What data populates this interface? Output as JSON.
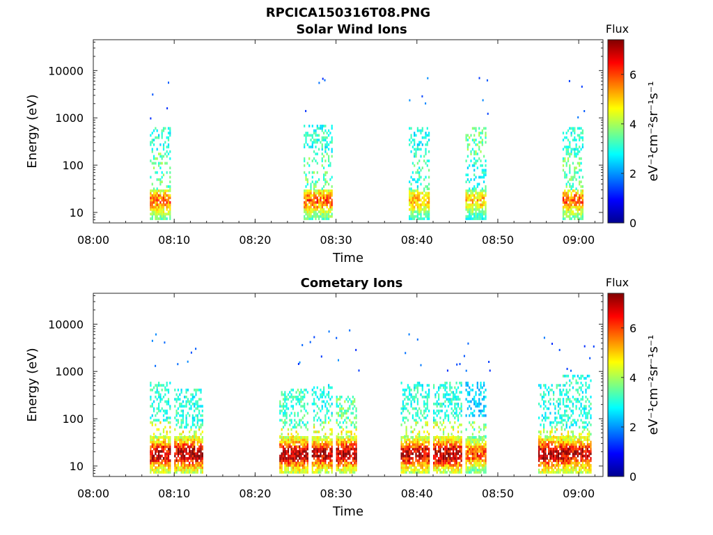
{
  "figure": {
    "filename": "RPCICA150316T08.PNG"
  },
  "chart_data": [
    {
      "type": "heatmap",
      "title": "Solar Wind Ions",
      "xlabel": "Time",
      "ylabel": "Energy (eV)",
      "x_ticks": [
        "08:00",
        "08:10",
        "08:20",
        "08:30",
        "08:40",
        "08:50",
        "09:00"
      ],
      "x_range_minutes_after_0800": [
        0,
        63
      ],
      "y_scale": "log",
      "y_ticks": [
        "10",
        "100",
        "1000",
        "10000"
      ],
      "y_range_eV": [
        6,
        45000
      ],
      "colorbar": {
        "label_title": "Flux",
        "unit": "eV⁻¹cm⁻²sr⁻¹s⁻¹",
        "range": [
          0,
          7.4
        ],
        "ticks": [
          "0",
          "2",
          "4",
          "6"
        ],
        "colormap": "jet"
      },
      "bursts": [
        {
          "t_start": "08:07",
          "t_end": "08:09",
          "low_band_eV": [
            7,
            30
          ],
          "low_peak": 5.8,
          "mid_band_eV": [
            180,
            600
          ],
          "mid_peak": 3.0
        },
        {
          "t_start": "08:26",
          "t_end": "08:29",
          "low_band_eV": [
            7,
            30
          ],
          "low_peak": 5.8,
          "mid_band_eV": [
            180,
            700
          ],
          "mid_peak": 3.0
        },
        {
          "t_start": "08:39",
          "t_end": "08:41",
          "low_band_eV": [
            7,
            30
          ],
          "low_peak": 5.2,
          "mid_band_eV": [
            200,
            600
          ],
          "mid_peak": 2.8
        },
        {
          "t_start": "08:46",
          "t_end": "08:48",
          "low_band_eV": [
            7,
            30
          ],
          "low_peak": 5.0,
          "mid_band_eV": [
            150,
            600
          ],
          "mid_peak": 3.5
        },
        {
          "t_start": "08:58",
          "t_end": "09:00",
          "low_band_eV": [
            7,
            30
          ],
          "low_peak": 5.8,
          "mid_band_eV": [
            180,
            600
          ],
          "mid_peak": 3.0
        }
      ]
    },
    {
      "type": "heatmap",
      "title": "Cometary Ions",
      "xlabel": "Time",
      "ylabel": "Energy (eV)",
      "x_ticks": [
        "08:00",
        "08:10",
        "08:20",
        "08:30",
        "08:40",
        "08:50",
        "09:00"
      ],
      "x_range_minutes_after_0800": [
        0,
        63
      ],
      "y_scale": "log",
      "y_ticks": [
        "10",
        "100",
        "1000",
        "10000"
      ],
      "y_range_eV": [
        6,
        45000
      ],
      "colorbar": {
        "label_title": "Flux",
        "unit": "eV⁻¹cm⁻²sr⁻¹s⁻¹",
        "range": [
          0,
          7.4
        ],
        "ticks": [
          "0",
          "2",
          "4",
          "6"
        ],
        "colormap": "jet"
      },
      "bursts": [
        {
          "t_start": "08:07",
          "t_end": "08:09",
          "low_band_eV": [
            7,
            40
          ],
          "low_peak": 7.0,
          "mid_band_eV": [
            80,
            600
          ],
          "mid_peak": 3.0
        },
        {
          "t_start": "08:10",
          "t_end": "08:13",
          "low_band_eV": [
            7,
            40
          ],
          "low_peak": 7.2,
          "mid_band_eV": [
            60,
            400
          ],
          "mid_peak": 3.0
        },
        {
          "t_start": "08:23",
          "t_end": "08:26",
          "low_band_eV": [
            7,
            40
          ],
          "low_peak": 7.2,
          "mid_band_eV": [
            60,
            400
          ],
          "mid_peak": 3.2
        },
        {
          "t_start": "08:27",
          "t_end": "08:29",
          "low_band_eV": [
            7,
            40
          ],
          "low_peak": 7.0,
          "mid_band_eV": [
            80,
            500
          ],
          "mid_peak": 3.0
        },
        {
          "t_start": "08:30",
          "t_end": "08:32",
          "low_band_eV": [
            7,
            40
          ],
          "low_peak": 7.2,
          "mid_band_eV": [
            60,
            300
          ],
          "mid_peak": 3.5
        },
        {
          "t_start": "08:38",
          "t_end": "08:41",
          "low_band_eV": [
            7,
            40
          ],
          "low_peak": 7.0,
          "mid_band_eV": [
            80,
            600
          ],
          "mid_peak": 3.0
        },
        {
          "t_start": "08:42",
          "t_end": "08:45",
          "low_band_eV": [
            7,
            40
          ],
          "low_peak": 7.2,
          "mid_band_eV": [
            80,
            600
          ],
          "mid_peak": 3.0
        },
        {
          "t_start": "08:46",
          "t_end": "08:48",
          "low_band_eV": [
            7,
            40
          ],
          "low_peak": 6.0,
          "mid_band_eV": [
            100,
            600
          ],
          "mid_peak": 2.5
        },
        {
          "t_start": "08:55",
          "t_end": "08:58",
          "low_band_eV": [
            7,
            40
          ],
          "low_peak": 7.2,
          "mid_band_eV": [
            60,
            500
          ],
          "mid_peak": 3.0
        },
        {
          "t_start": "08:58",
          "t_end": "09:01",
          "low_band_eV": [
            7,
            40
          ],
          "low_peak": 7.0,
          "mid_band_eV": [
            60,
            800
          ],
          "mid_peak": 3.0
        }
      ]
    }
  ]
}
